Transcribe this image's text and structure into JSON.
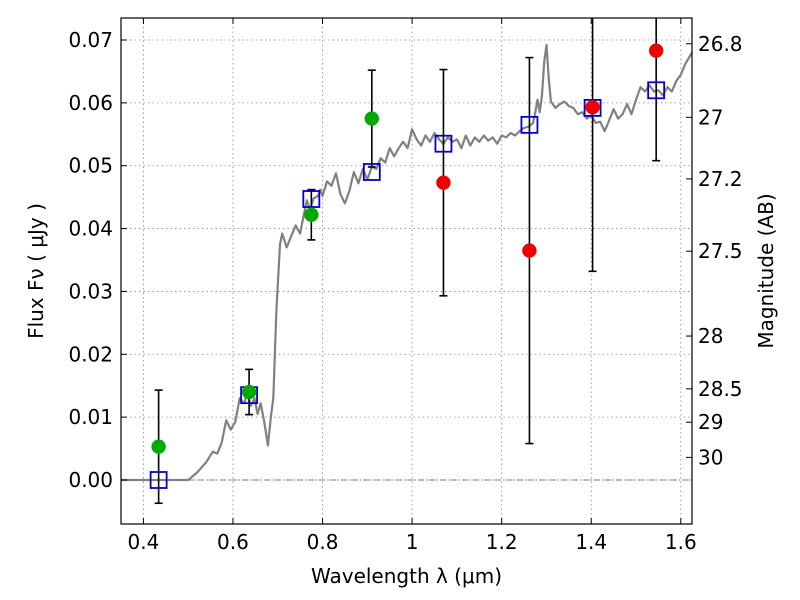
{
  "chart_data": {
    "type": "scatter",
    "xlabel": "Wavelength  λ (μm)",
    "ylabel": "Flux  Fν  ( μJy )",
    "ylabel_right": "Magnitude (AB)",
    "xlim": [
      0.35,
      1.625
    ],
    "ylim": [
      -0.007,
      0.0735
    ],
    "grid": true,
    "x_ticks": [
      0.4,
      0.6,
      0.8,
      1.0,
      1.2,
      1.4,
      1.6
    ],
    "x_tick_labels": [
      "0.4",
      "0.6",
      "0.8",
      "1",
      "1.2",
      "1.4",
      "1.6"
    ],
    "y_ticks": [
      0.0,
      0.01,
      0.02,
      0.03,
      0.04,
      0.05,
      0.06,
      0.07
    ],
    "y_tick_labels": [
      "0.00",
      "0.01",
      "0.02",
      "0.03",
      "0.04",
      "0.05",
      "0.06",
      "0.07"
    ],
    "right_ticks": [
      {
        "label": "26.8",
        "flux": 0.0694
      },
      {
        "label": "27",
        "flux": 0.0577
      },
      {
        "label": "27.2",
        "flux": 0.0479
      },
      {
        "label": "27.5",
        "flux": 0.0364
      },
      {
        "label": "28",
        "flux": 0.0229
      },
      {
        "label": "28.5",
        "flux": 0.0145
      },
      {
        "label": "29",
        "flux": 0.0092
      },
      {
        "label": "30",
        "flux": 0.0036
      }
    ],
    "series": [
      {
        "kind": "line",
        "color": "#808080",
        "points": [
          [
            0.35,
            0.0
          ],
          [
            0.5,
            0.0
          ],
          [
            0.52,
            0.0012
          ],
          [
            0.54,
            0.0028
          ],
          [
            0.555,
            0.0045
          ],
          [
            0.565,
            0.0042
          ],
          [
            0.575,
            0.006
          ],
          [
            0.585,
            0.0095
          ],
          [
            0.595,
            0.008
          ],
          [
            0.605,
            0.0092
          ],
          [
            0.615,
            0.013
          ],
          [
            0.625,
            0.0122
          ],
          [
            0.632,
            0.0138
          ],
          [
            0.64,
            0.0118
          ],
          [
            0.648,
            0.013
          ],
          [
            0.655,
            0.0105
          ],
          [
            0.662,
            0.0122
          ],
          [
            0.67,
            0.0092
          ],
          [
            0.678,
            0.0055
          ],
          [
            0.685,
            0.0102
          ],
          [
            0.69,
            0.013
          ],
          [
            0.697,
            0.027
          ],
          [
            0.705,
            0.0375
          ],
          [
            0.71,
            0.0392
          ],
          [
            0.72,
            0.037
          ],
          [
            0.73,
            0.0388
          ],
          [
            0.74,
            0.0405
          ],
          [
            0.75,
            0.0392
          ],
          [
            0.757,
            0.0418
          ],
          [
            0.765,
            0.0445
          ],
          [
            0.772,
            0.043
          ],
          [
            0.78,
            0.0448
          ],
          [
            0.79,
            0.0452
          ],
          [
            0.795,
            0.0462
          ],
          [
            0.8,
            0.0452
          ],
          [
            0.81,
            0.0475
          ],
          [
            0.82,
            0.0468
          ],
          [
            0.83,
            0.0488
          ],
          [
            0.84,
            0.0455
          ],
          [
            0.85,
            0.044
          ],
          [
            0.86,
            0.046
          ],
          [
            0.87,
            0.049
          ],
          [
            0.88,
            0.0472
          ],
          [
            0.89,
            0.0495
          ],
          [
            0.9,
            0.0478
          ],
          [
            0.91,
            0.0498
          ],
          [
            0.92,
            0.0495
          ],
          [
            0.93,
            0.0512
          ],
          [
            0.94,
            0.0505
          ],
          [
            0.95,
            0.0528
          ],
          [
            0.96,
            0.0515
          ],
          [
            0.97,
            0.0528
          ],
          [
            0.98,
            0.0538
          ],
          [
            0.99,
            0.0528
          ],
          [
            1.0,
            0.0558
          ],
          [
            1.01,
            0.0542
          ],
          [
            1.02,
            0.0532
          ],
          [
            1.03,
            0.0548
          ],
          [
            1.04,
            0.0538
          ],
          [
            1.05,
            0.0552
          ],
          [
            1.06,
            0.0542
          ],
          [
            1.07,
            0.0535
          ],
          [
            1.08,
            0.0545
          ],
          [
            1.09,
            0.0538
          ],
          [
            1.1,
            0.0542
          ],
          [
            1.11,
            0.0528
          ],
          [
            1.12,
            0.0548
          ],
          [
            1.13,
            0.0532
          ],
          [
            1.14,
            0.0545
          ],
          [
            1.15,
            0.0538
          ],
          [
            1.16,
            0.0548
          ],
          [
            1.17,
            0.054
          ],
          [
            1.18,
            0.0545
          ],
          [
            1.19,
            0.0535
          ],
          [
            1.2,
            0.0548
          ],
          [
            1.21,
            0.0545
          ],
          [
            1.22,
            0.0552
          ],
          [
            1.23,
            0.0548
          ],
          [
            1.24,
            0.0555
          ],
          [
            1.25,
            0.056
          ],
          [
            1.26,
            0.0562
          ],
          [
            1.27,
            0.0568
          ],
          [
            1.275,
            0.0585
          ],
          [
            1.28,
            0.0605
          ],
          [
            1.285,
            0.0585
          ],
          [
            1.29,
            0.0612
          ],
          [
            1.295,
            0.0665
          ],
          [
            1.3,
            0.0692
          ],
          [
            1.305,
            0.064
          ],
          [
            1.31,
            0.0602
          ],
          [
            1.32,
            0.0592
          ],
          [
            1.33,
            0.0598
          ],
          [
            1.34,
            0.0602
          ],
          [
            1.35,
            0.0595
          ],
          [
            1.36,
            0.0592
          ],
          [
            1.37,
            0.0582
          ],
          [
            1.38,
            0.0585
          ],
          [
            1.39,
            0.0575
          ],
          [
            1.4,
            0.058
          ],
          [
            1.41,
            0.0568
          ],
          [
            1.42,
            0.057
          ],
          [
            1.43,
            0.0555
          ],
          [
            1.44,
            0.0572
          ],
          [
            1.45,
            0.059
          ],
          [
            1.46,
            0.0575
          ],
          [
            1.47,
            0.0582
          ],
          [
            1.48,
            0.0598
          ],
          [
            1.49,
            0.0582
          ],
          [
            1.5,
            0.0605
          ],
          [
            1.51,
            0.0625
          ],
          [
            1.52,
            0.0618
          ],
          [
            1.53,
            0.0628
          ],
          [
            1.54,
            0.0618
          ],
          [
            1.55,
            0.062
          ],
          [
            1.56,
            0.0612
          ],
          [
            1.57,
            0.0625
          ],
          [
            1.58,
            0.0618
          ],
          [
            1.59,
            0.0635
          ],
          [
            1.6,
            0.0645
          ],
          [
            1.61,
            0.0662
          ],
          [
            1.625,
            0.068
          ]
        ]
      },
      {
        "kind": "squares",
        "color": "#0000cc",
        "points": [
          [
            0.434,
            0.0
          ],
          [
            0.636,
            0.0135
          ],
          [
            0.775,
            0.0447
          ],
          [
            0.91,
            0.049
          ],
          [
            1.07,
            0.0535
          ],
          [
            1.262,
            0.0565
          ],
          [
            1.403,
            0.0592
          ],
          [
            1.545,
            0.062
          ]
        ]
      },
      {
        "kind": "errorbars",
        "color": "#000000",
        "points": [
          {
            "x": 0.434,
            "y": 0.0053,
            "lo": -0.0037,
            "hi": 0.0143
          },
          {
            "x": 0.636,
            "y": 0.014,
            "lo": 0.0104,
            "hi": 0.0176
          },
          {
            "x": 0.775,
            "y": 0.0422,
            "lo": 0.0382,
            "hi": 0.0462
          },
          {
            "x": 0.91,
            "y": 0.0575,
            "lo": 0.0498,
            "hi": 0.0652
          },
          {
            "x": 1.07,
            "y": 0.0473,
            "lo": 0.0293,
            "hi": 0.0653
          },
          {
            "x": 1.262,
            "y": 0.0365,
            "lo": 0.0058,
            "hi": 0.0672
          },
          {
            "x": 1.403,
            "y": 0.0593,
            "lo": 0.0332,
            "hi": 0.0735
          },
          {
            "x": 1.545,
            "y": 0.0683,
            "lo": 0.0508,
            "hi": 0.0735
          }
        ]
      },
      {
        "kind": "circles",
        "color": "#00aa00",
        "points": [
          [
            0.434,
            0.0053
          ],
          [
            0.636,
            0.014
          ],
          [
            0.775,
            0.0422
          ],
          [
            0.91,
            0.0575
          ]
        ]
      },
      {
        "kind": "circles",
        "color": "#ee0000",
        "points": [
          [
            1.07,
            0.0473
          ],
          [
            1.262,
            0.0365
          ],
          [
            1.403,
            0.0593
          ],
          [
            1.545,
            0.0683
          ]
        ]
      }
    ]
  }
}
